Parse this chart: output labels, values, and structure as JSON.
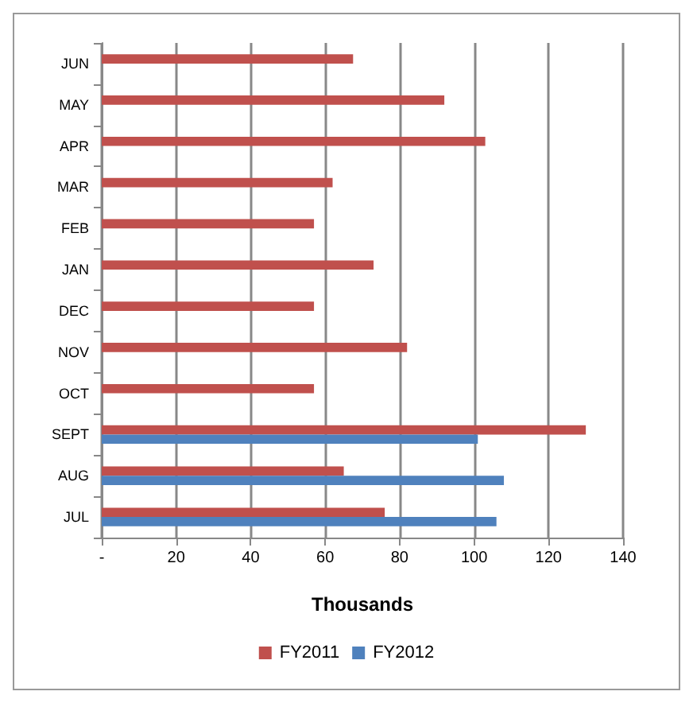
{
  "chart_data": {
    "type": "bar",
    "orientation": "horizontal",
    "xlabel": "Thousands",
    "categories": [
      "JUN",
      "MAY",
      "APR",
      "MAR",
      "FEB",
      "JAN",
      "DEC",
      "NOV",
      "OCT",
      "SEPT",
      "AUG",
      "JUL"
    ],
    "series": [
      {
        "name": "FY2011",
        "color": "#c0504d",
        "values": [
          67.5,
          92,
          103,
          62,
          57,
          73,
          57,
          82,
          57,
          130,
          65,
          76
        ]
      },
      {
        "name": "FY2012",
        "color": "#4f81bd",
        "values": [
          null,
          null,
          null,
          null,
          null,
          null,
          null,
          null,
          null,
          101,
          108,
          106
        ]
      }
    ],
    "xlim": [
      0,
      140
    ],
    "xticks": [
      {
        "value": 0,
        "label": "-"
      },
      20,
      40,
      60,
      80,
      100,
      120,
      140
    ],
    "grid": "x",
    "legend": "bottom"
  }
}
